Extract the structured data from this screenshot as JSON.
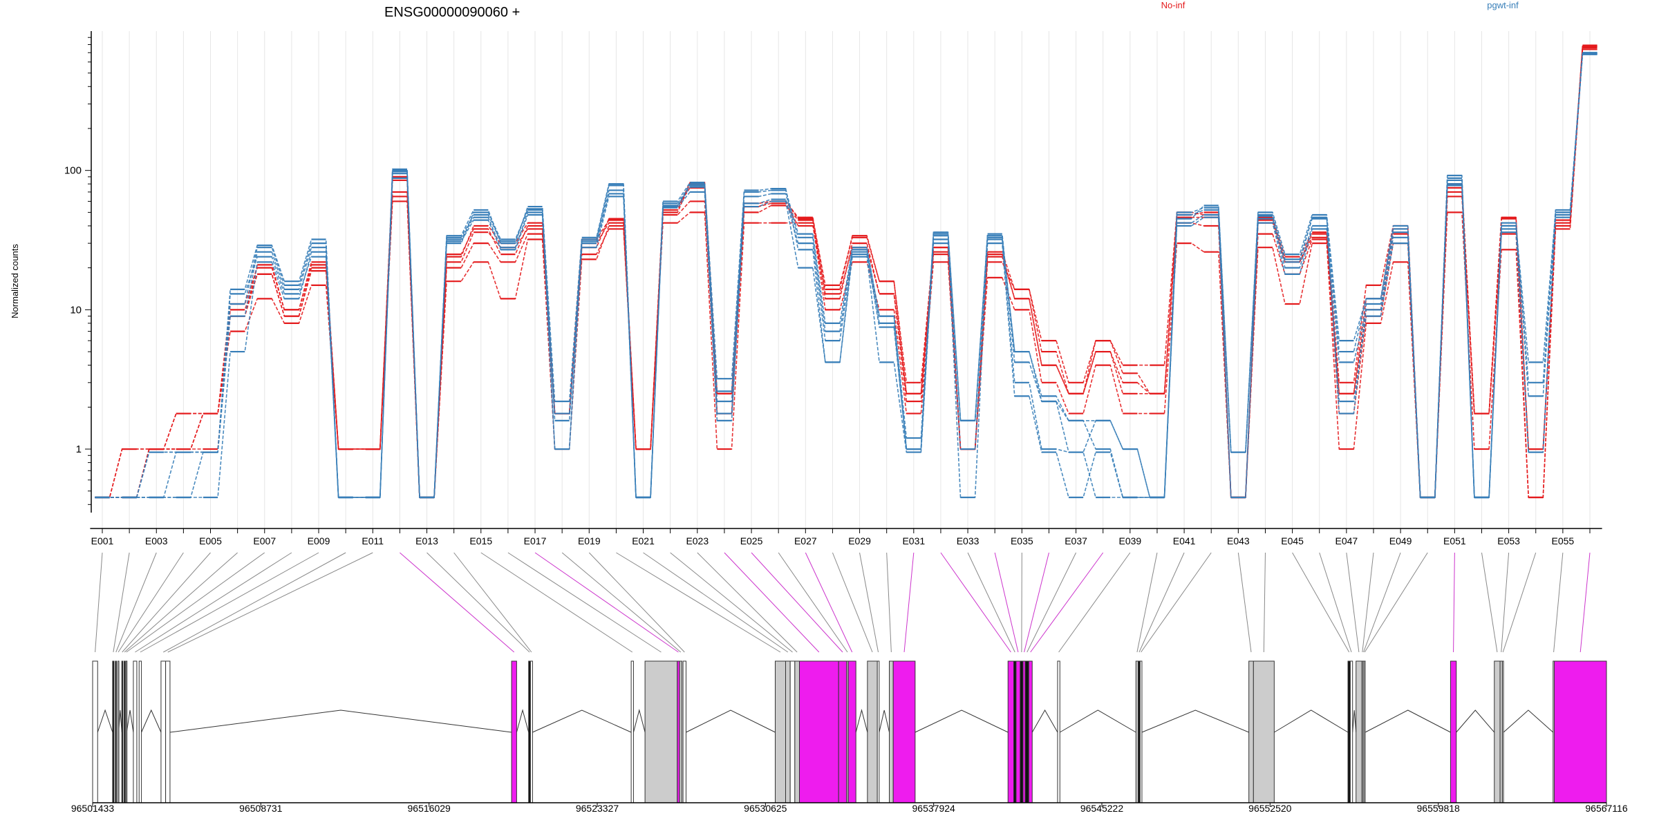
{
  "title": "ENSG00000090060 +",
  "ylabel": "Normalized counts",
  "legend": [
    {
      "name": "No-inf",
      "color": "#e41a1c"
    },
    {
      "name": "pgwt-inf",
      "color": "#377eb8"
    }
  ],
  "chart_data": {
    "type": "line",
    "title": "ENSG00000090060 +",
    "ylabel": "Normalized counts",
    "xlabel": "",
    "yscale": "log",
    "ylim": [
      0.35,
      1000
    ],
    "yticks": [
      1,
      10,
      100
    ],
    "ytick_labels": [
      "1",
      "10",
      "100"
    ],
    "grid": "vertical",
    "legend_placement": "top",
    "categories": [
      "E001",
      "E002",
      "E003",
      "E004",
      "E005",
      "E006",
      "E007",
      "E008",
      "E009",
      "E010",
      "E011",
      "E012",
      "E013",
      "E014",
      "E015",
      "E016",
      "E017",
      "E018",
      "E019",
      "E020",
      "E021",
      "E022",
      "E023",
      "E024",
      "E025",
      "E026",
      "E027",
      "E028",
      "E029",
      "E030",
      "E031",
      "E032",
      "E033",
      "E034",
      "E035",
      "E036",
      "E037",
      "E038",
      "E039",
      "E040",
      "E041",
      "E042",
      "E043",
      "E044",
      "E045",
      "E046",
      "E047",
      "E048",
      "E049",
      "E050",
      "E051",
      "E052",
      "E053",
      "E054",
      "E055",
      "E056"
    ],
    "xtick_labels": [
      "E001",
      "E003",
      "E005",
      "E007",
      "E009",
      "E011",
      "E013",
      "E015",
      "E017",
      "E019",
      "E021",
      "E023",
      "E025",
      "E027",
      "E029",
      "E031",
      "E033",
      "E035",
      "E037",
      "E039",
      "E041",
      "E043",
      "E045",
      "E047",
      "E049",
      "E051",
      "E053",
      "E055"
    ],
    "series": [
      {
        "group": "No-inf",
        "color": "#e41a1c",
        "values": [
          0.45,
          1,
          1,
          1.8,
          1.8,
          9,
          18,
          9,
          20,
          1,
          1,
          85,
          0.45,
          22,
          36,
          28,
          38,
          1.8,
          30,
          42,
          1,
          55,
          75,
          2.5,
          55,
          58,
          40,
          13,
          28,
          13,
          2.5,
          28,
          1,
          25,
          12,
          4,
          2.5,
          5,
          3,
          2.5,
          46,
          46,
          0.45,
          44,
          22,
          33,
          2.5,
          10,
          35,
          0.45,
          75,
          1.8,
          40,
          1,
          40,
          760
        ]
      },
      {
        "group": "No-inf",
        "color": "#e41a1c",
        "values": [
          0.45,
          1,
          1,
          1.8,
          1.8,
          11,
          20,
          10,
          21,
          1,
          1,
          65,
          0.45,
          25,
          38,
          25,
          40,
          1.8,
          28,
          45,
          1,
          50,
          80,
          1.8,
          58,
          60,
          45,
          15,
          33,
          16,
          2.5,
          25,
          1,
          22,
          14,
          5,
          2.5,
          6,
          3.5,
          2.5,
          48,
          50,
          0.45,
          42,
          22,
          35,
          2.5,
          12,
          38,
          0.45,
          80,
          1.8,
          45,
          1,
          42,
          780
        ]
      },
      {
        "group": "No-inf",
        "color": "#e41a1c",
        "values": [
          0.45,
          0.45,
          1,
          1,
          1.8,
          7,
          12,
          8,
          15,
          1,
          1,
          60,
          0.45,
          16,
          22,
          12,
          32,
          1,
          23,
          40,
          1,
          42,
          50,
          1,
          42,
          42,
          42,
          10,
          22,
          10,
          1.8,
          22,
          1,
          17,
          10,
          3,
          1.8,
          4,
          1.8,
          1.8,
          30,
          26,
          0.45,
          28,
          11,
          30,
          1,
          8,
          22,
          0.45,
          50,
          1,
          27,
          0.45,
          38,
          740
        ]
      },
      {
        "group": "No-inf",
        "color": "#e41a1c",
        "values": [
          0.45,
          0.45,
          1,
          1,
          1,
          10,
          18,
          9,
          19,
          1,
          1,
          70,
          0.45,
          20,
          30,
          22,
          35,
          1.8,
          25,
          38,
          1,
          48,
          60,
          1.8,
          50,
          56,
          44,
          12,
          30,
          13,
          2.2,
          26,
          1,
          24,
          12,
          4,
          2.5,
          5,
          2.5,
          2.5,
          42,
          40,
          0.45,
          35,
          18,
          32,
          1.8,
          9,
          30,
          0.45,
          65,
          1.8,
          35,
          0.45,
          40,
          770
        ]
      },
      {
        "group": "No-inf",
        "color": "#e41a1c",
        "values": [
          0.45,
          0.45,
          1,
          1,
          1.8,
          9,
          21,
          10,
          22,
          1,
          1,
          90,
          0.45,
          24,
          40,
          30,
          42,
          1.8,
          32,
          44,
          1,
          52,
          82,
          2.5,
          55,
          60,
          46,
          14,
          34,
          16,
          3,
          28,
          1,
          26,
          14,
          6,
          3,
          6,
          4,
          4,
          50,
          48,
          0.45,
          46,
          24,
          36,
          3,
          15,
          40,
          0.45,
          70,
          1.8,
          46,
          1,
          44,
          790
        ]
      },
      {
        "group": "pgwt-inf",
        "color": "#377eb8",
        "values": [
          0.45,
          0.45,
          0.45,
          0.45,
          0.45,
          5,
          22,
          12,
          26,
          0.45,
          0.45,
          100,
          0.45,
          30,
          50,
          32,
          52,
          1,
          32,
          78,
          0.45,
          55,
          80,
          1.8,
          70,
          72,
          35,
          8,
          28,
          9,
          1,
          34,
          1.6,
          34,
          5,
          2.2,
          0.95,
          1.6,
          1,
          0.45,
          50,
          54,
          0.95,
          48,
          22,
          46,
          1.8,
          11,
          36,
          0.45,
          92,
          0.45,
          40,
          4.2,
          50,
          690
        ]
      },
      {
        "group": "pgwt-inf",
        "color": "#377eb8",
        "values": [
          0.45,
          0.45,
          0.95,
          0.95,
          0.95,
          14,
          29,
          16,
          32,
          0.45,
          0.45,
          102,
          0.45,
          34,
          52,
          30,
          55,
          2.2,
          33,
          80,
          0.45,
          60,
          82,
          3.2,
          72,
          74,
          27,
          4.2,
          26,
          8,
          1,
          36,
          1.6,
          35,
          4.2,
          2.2,
          1.6,
          1,
          0.45,
          0.45,
          45,
          56,
          0.95,
          50,
          25,
          48,
          6,
          12,
          40,
          0.45,
          88,
          0.45,
          42,
          2.4,
          52,
          700
        ]
      },
      {
        "group": "pgwt-inf",
        "color": "#377eb8",
        "values": [
          0.45,
          0.45,
          0.45,
          0.45,
          0.95,
          9,
          26,
          14,
          28,
          0.45,
          0.45,
          95,
          0.45,
          32,
          46,
          28,
          50,
          1.8,
          30,
          68,
          0.45,
          56,
          76,
          2.2,
          58,
          62,
          30,
          6,
          25,
          7.5,
          1,
          32,
          0.45,
          32,
          3,
          1,
          0.95,
          0.45,
          0.45,
          0.45,
          42,
          48,
          0.45,
          45,
          20,
          40,
          4.2,
          10,
          33,
          0.45,
          80,
          0.45,
          38,
          0.95,
          48,
          680
        ]
      },
      {
        "group": "pgwt-inf",
        "color": "#377eb8",
        "values": [
          0.45,
          0.45,
          0.95,
          0.95,
          0.95,
          11,
          28,
          15,
          30,
          0.45,
          0.45,
          98,
          0.45,
          33,
          48,
          31,
          53,
          1.6,
          31,
          72,
          0.45,
          58,
          78,
          2.6,
          65,
          68,
          33,
          7,
          27,
          9,
          1.2,
          35,
          1.6,
          33,
          5,
          2.4,
          1.6,
          1.6,
          1,
          0.45,
          48,
          52,
          0.95,
          47,
          23,
          45,
          5,
          12,
          38,
          0.45,
          85,
          0.45,
          40,
          3,
          50,
          695
        ]
      },
      {
        "group": "pgwt-inf",
        "color": "#377eb8",
        "values": [
          0.45,
          0.45,
          0.45,
          0.95,
          0.95,
          13,
          24,
          13,
          24,
          0.45,
          0.45,
          88,
          0.45,
          31,
          44,
          27,
          48,
          1,
          28,
          65,
          0.45,
          54,
          70,
          1.6,
          55,
          60,
          20,
          4.2,
          24,
          4.2,
          0.95,
          30,
          1,
          30,
          2.4,
          0.95,
          0.45,
          0.95,
          0.45,
          0.45,
          40,
          46,
          0.45,
          42,
          18,
          38,
          2.2,
          9,
          30,
          0.45,
          78,
          0.45,
          36,
          0.95,
          46,
          685
        ]
      }
    ],
    "gene_model_axis": {
      "tick_labels": [
        "96501433",
        "96508731",
        "96516029",
        "96523327",
        "96530625",
        "96537924",
        "96545222",
        "96552520",
        "96559818",
        "96567116"
      ],
      "range": [
        96501433,
        96567116
      ]
    },
    "exons": [
      {
        "id": "E001",
        "start": 96501433,
        "end": 96501650,
        "fill": "white"
      },
      {
        "id": "E002",
        "start": 96502300,
        "end": 96502360,
        "fill": "black"
      },
      {
        "id": "E003",
        "start": 96502420,
        "end": 96502470,
        "fill": "black"
      },
      {
        "id": "E004",
        "start": 96502530,
        "end": 96502560,
        "fill": "white"
      },
      {
        "id": "E005",
        "start": 96502700,
        "end": 96502730,
        "fill": "black"
      },
      {
        "id": "E006",
        "start": 96502800,
        "end": 96502830,
        "fill": "black"
      },
      {
        "id": "E007",
        "start": 96502880,
        "end": 96502910,
        "fill": "white"
      },
      {
        "id": "E008",
        "start": 96503200,
        "end": 96503350,
        "fill": "white"
      },
      {
        "id": "E009",
        "start": 96503450,
        "end": 96503550,
        "fill": "white"
      },
      {
        "id": "E010",
        "start": 96504400,
        "end": 96504600,
        "fill": "white"
      },
      {
        "id": "E011",
        "start": 96504600,
        "end": 96504790,
        "fill": "white"
      },
      {
        "id": "E012",
        "start": 96519610,
        "end": 96519830,
        "fill": "magenta"
      },
      {
        "id": "E013",
        "start": 96520350,
        "end": 96520430,
        "fill": "black"
      },
      {
        "id": "E014",
        "start": 96520430,
        "end": 96520520,
        "fill": "white"
      },
      {
        "id": "E015",
        "start": 96524800,
        "end": 96524900,
        "fill": "white"
      },
      {
        "id": "E016",
        "start": 96525400,
        "end": 96526800,
        "fill": "lightgray"
      },
      {
        "id": "E017",
        "start": 96526800,
        "end": 96526900,
        "fill": "magenta"
      },
      {
        "id": "E018",
        "start": 96526900,
        "end": 96527000,
        "fill": "lightgray"
      },
      {
        "id": "E019",
        "start": 96527050,
        "end": 96527180,
        "fill": "white"
      },
      {
        "id": "E020",
        "start": 96531050,
        "end": 96531500,
        "fill": "lightgray"
      },
      {
        "id": "E021",
        "start": 96531500,
        "end": 96531700,
        "fill": "lightgray"
      },
      {
        "id": "E022",
        "start": 96531700,
        "end": 96531900,
        "fill": "white"
      },
      {
        "id": "E023",
        "start": 96531900,
        "end": 96532100,
        "fill": "lightgray"
      },
      {
        "id": "E024",
        "start": 96532100,
        "end": 96533800,
        "fill": "magenta"
      },
      {
        "id": "E025",
        "start": 96533800,
        "end": 96534150,
        "fill": "magenta"
      },
      {
        "id": "E026",
        "start": 96534150,
        "end": 96534220,
        "fill": "lightgray"
      },
      {
        "id": "E027",
        "start": 96534220,
        "end": 96534550,
        "fill": "magenta"
      },
      {
        "id": "E028",
        "start": 96535050,
        "end": 96535480,
        "fill": "lightgray"
      },
      {
        "id": "E029",
        "start": 96535480,
        "end": 96535560,
        "fill": "white"
      },
      {
        "id": "E030",
        "start": 96536000,
        "end": 96536170,
        "fill": "lightgray"
      },
      {
        "id": "E031",
        "start": 96536170,
        "end": 96537120,
        "fill": "magenta"
      },
      {
        "id": "E032",
        "start": 96541150,
        "end": 96541400,
        "fill": "magenta"
      },
      {
        "id": "E033",
        "start": 96541400,
        "end": 96541500,
        "fill": "black"
      },
      {
        "id": "E034",
        "start": 96541500,
        "end": 96541680,
        "fill": "magenta"
      },
      {
        "id": "E035",
        "start": 96541680,
        "end": 96541800,
        "fill": "black"
      },
      {
        "id": "E036",
        "start": 96541800,
        "end": 96541900,
        "fill": "magenta"
      },
      {
        "id": "E037",
        "start": 96541900,
        "end": 96542050,
        "fill": "black"
      },
      {
        "id": "E038",
        "start": 96542050,
        "end": 96542200,
        "fill": "magenta"
      },
      {
        "id": "E039",
        "start": 96543300,
        "end": 96543400,
        "fill": "white"
      },
      {
        "id": "E040",
        "start": 96546700,
        "end": 96546800,
        "fill": "lightgray"
      },
      {
        "id": "E041",
        "start": 96546800,
        "end": 96546880,
        "fill": "black"
      },
      {
        "id": "E042",
        "start": 96546880,
        "end": 96546960,
        "fill": "white"
      },
      {
        "id": "E043",
        "start": 96551600,
        "end": 96551800,
        "fill": "lightgray"
      },
      {
        "id": "E044",
        "start": 96551800,
        "end": 96552700,
        "fill": "lightgray"
      },
      {
        "id": "E045",
        "start": 96555900,
        "end": 96556000,
        "fill": "black"
      },
      {
        "id": "E046",
        "start": 96556000,
        "end": 96556100,
        "fill": "white"
      },
      {
        "id": "E047",
        "start": 96556250,
        "end": 96556500,
        "fill": "lightgray"
      },
      {
        "id": "E048",
        "start": 96556500,
        "end": 96556550,
        "fill": "white"
      },
      {
        "id": "E049",
        "start": 96556550,
        "end": 96556600,
        "fill": "white"
      },
      {
        "id": "E050",
        "start": 96556600,
        "end": 96556650,
        "fill": "white"
      },
      {
        "id": "E051",
        "start": 96560350,
        "end": 96560600,
        "fill": "magenta"
      },
      {
        "id": "E052",
        "start": 96562250,
        "end": 96562500,
        "fill": "lightgray"
      },
      {
        "id": "E053",
        "start": 96562500,
        "end": 96562600,
        "fill": "lightgray"
      },
      {
        "id": "E054",
        "start": 96562600,
        "end": 96562650,
        "fill": "white"
      },
      {
        "id": "E055",
        "start": 96564800,
        "end": 96564850,
        "fill": "white"
      },
      {
        "id": "E056",
        "start": 96564850,
        "end": 96567116,
        "fill": "magenta"
      }
    ]
  }
}
